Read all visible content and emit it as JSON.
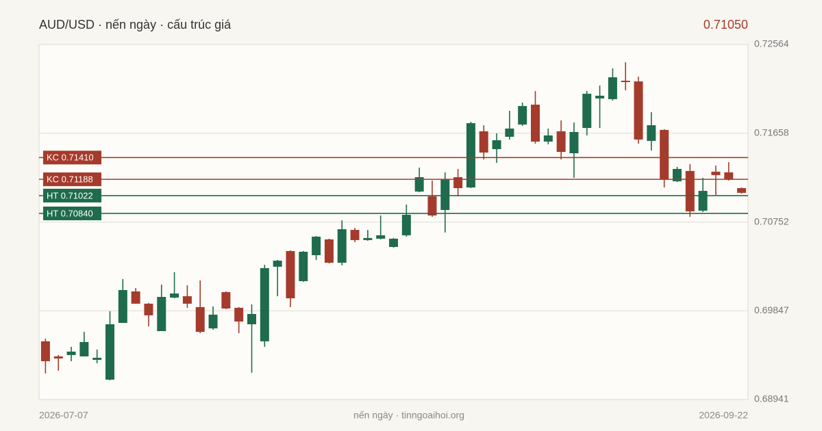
{
  "chart_data": {
    "type": "candlestick",
    "title": "AUD/USD · nến ngày · cấu trúc giá",
    "price": "0.71050",
    "caption": "nến ngày · tinngoaihoi.org",
    "categories": [
      "2026-07-07",
      null,
      null,
      null,
      null,
      null,
      null,
      null,
      null,
      null,
      null,
      null,
      null,
      null,
      null,
      null,
      null,
      null,
      null,
      null,
      null,
      null,
      null,
      null,
      null,
      null,
      null,
      null,
      null,
      null,
      null,
      null,
      null,
      null,
      null,
      null,
      null,
      null,
      null,
      null,
      null,
      null,
      null,
      null,
      null,
      null,
      null,
      null,
      null,
      null,
      null,
      null,
      null,
      null,
      "2026-09-22"
    ],
    "open": [
      0.69535,
      0.69381,
      0.69395,
      0.69381,
      0.69346,
      0.69144,
      0.69723,
      0.70044,
      0.69919,
      0.69639,
      0.69981,
      0.69995,
      0.69884,
      0.69667,
      0.70037,
      0.69877,
      0.69709,
      0.69535,
      0.70296,
      0.70456,
      0.70149,
      0.70414,
      0.70575,
      0.70337,
      0.70672,
      0.70568,
      0.70582,
      0.70498,
      0.70617,
      0.71063,
      0.71014,
      0.70875,
      0.7121,
      0.71105,
      0.71678,
      0.71496,
      0.71622,
      0.71747,
      0.7195,
      0.71573,
      0.71678,
      0.71454,
      0.71712,
      0.72013,
      0.72006,
      0.72194,
      0.72187,
      0.7158,
      0.71692,
      0.71168,
      0.71273,
      0.70868,
      0.71266,
      0.71259,
      0.71098
    ],
    "high": [
      0.69563,
      0.69395,
      0.69479,
      0.69632,
      0.69451,
      0.69842,
      0.7017,
      0.70079,
      0.69926,
      0.70114,
      0.7024,
      0.70107,
      0.70156,
      0.69891,
      0.70044,
      0.69884,
      0.69912,
      0.70316,
      0.70365,
      0.70463,
      0.70456,
      0.7061,
      0.70582,
      0.7077,
      0.70693,
      0.70672,
      0.70819,
      0.70589,
      0.70931,
      0.71308,
      0.71175,
      0.71259,
      0.71294,
      0.71775,
      0.7174,
      0.71657,
      0.71887,
      0.71971,
      0.72089,
      0.71706,
      0.71789,
      0.71768,
      0.72089,
      0.72145,
      0.7232,
      0.72383,
      0.72236,
      0.71873,
      0.71699,
      0.71315,
      0.71343,
      0.71203,
      0.71329,
      0.71363,
      0.71105
    ],
    "low": [
      0.69207,
      0.69235,
      0.69332,
      0.69381,
      0.69311,
      0.69137,
      0.69723,
      0.69919,
      0.69688,
      0.69639,
      0.69974,
      0.69877,
      0.69618,
      0.69653,
      0.69863,
      0.69618,
      0.69214,
      0.69479,
      0.69995,
      0.69884,
      0.70142,
      0.70365,
      0.7033,
      0.7031,
      0.70547,
      0.70561,
      0.70575,
      0.70491,
      0.70603,
      0.71056,
      0.70805,
      0.70645,
      0.71014,
      0.71098,
      0.71391,
      0.71356,
      0.71594,
      0.71733,
      0.71552,
      0.71545,
      0.71391,
      0.71203,
      0.71636,
      0.71712,
      0.71992,
      0.72096,
      0.71552,
      0.71482,
      0.71105,
      0.71161,
      0.70805,
      0.70854,
      0.71028,
      0.71175,
      0.71042
    ],
    "close": [
      0.69332,
      0.6936,
      0.6943,
      0.69528,
      0.69367,
      0.69709,
      0.70058,
      0.69919,
      0.698,
      0.69988,
      0.70023,
      0.69919,
      0.69632,
      0.69807,
      0.6987,
      0.69737,
      0.69814,
      0.70282,
      0.70358,
      0.69974,
      0.70449,
      0.70603,
      0.70337,
      0.70679,
      0.70568,
      0.70589,
      0.70617,
      0.70582,
      0.70826,
      0.7121,
      0.70819,
      0.71189,
      0.71098,
      0.71761,
      0.71461,
      0.71587,
      0.71706,
      0.71936,
      0.71573,
      0.71636,
      0.71468,
      0.71671,
      0.72061,
      0.72041,
      0.72229,
      0.7218,
      0.71594,
      0.7174,
      0.71189,
      0.71294,
      0.70861,
      0.7107,
      0.71231,
      0.71189,
      0.7105
    ],
    "up_color": "#1f6b4e",
    "down_color": "#a53b2c",
    "ylim": [
      0.68941,
      0.72564
    ],
    "yticks": [
      0.72564,
      0.71658,
      0.70752,
      0.69847,
      0.68941
    ],
    "grid": true,
    "levels": [
      {
        "label": "KC 0.71410",
        "value": 0.7141,
        "color": "#a53b2c"
      },
      {
        "label": "KC 0.71188",
        "value": 0.71188,
        "color": "#a53b2c"
      },
      {
        "label": "HT 0.71022",
        "value": 0.71022,
        "color": "#1f6b4e"
      },
      {
        "label": "HT 0.70840",
        "value": 0.7084,
        "color": "#1f6b4e"
      }
    ]
  }
}
